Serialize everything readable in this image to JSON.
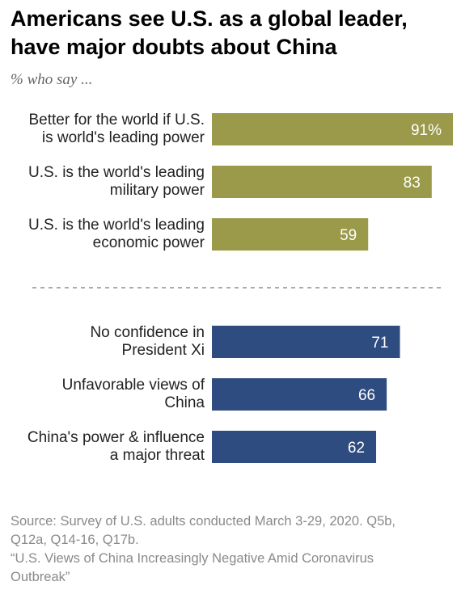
{
  "title": "Americans see U.S. as a global leader, have major doubts about China",
  "subtitle": "% who say ...",
  "chart_data": {
    "type": "bar",
    "orientation": "horizontal",
    "x_max": 91,
    "groups": [
      {
        "color": "#9a9a4a",
        "bars": [
          {
            "label": [
              "Better for the world if U.S.",
              "is world's leading power"
            ],
            "value": 91,
            "display": "91%"
          },
          {
            "label": [
              "U.S. is the world's leading",
              "military power"
            ],
            "value": 83,
            "display": "83"
          },
          {
            "label": [
              "U.S. is the world's leading",
              "economic power"
            ],
            "value": 59,
            "display": "59"
          }
        ]
      },
      {
        "color": "#2e4c7f",
        "bars": [
          {
            "label": [
              "No confidence in",
              "President Xi"
            ],
            "value": 71,
            "display": "71"
          },
          {
            "label": [
              "Unfavorable views of",
              "China"
            ],
            "value": 66,
            "display": "66"
          },
          {
            "label": [
              "China's power & influence",
              "a major threat"
            ],
            "value": 62,
            "display": "62"
          }
        ]
      }
    ]
  },
  "source": {
    "line1": "Source: Survey of U.S. adults conducted March 3-29, 2020. Q5b,\nQ12a, Q14-16, Q17b.",
    "line2": "“U.S. Views of China Increasingly Negative Amid Coronavirus\nOutbreak”"
  }
}
